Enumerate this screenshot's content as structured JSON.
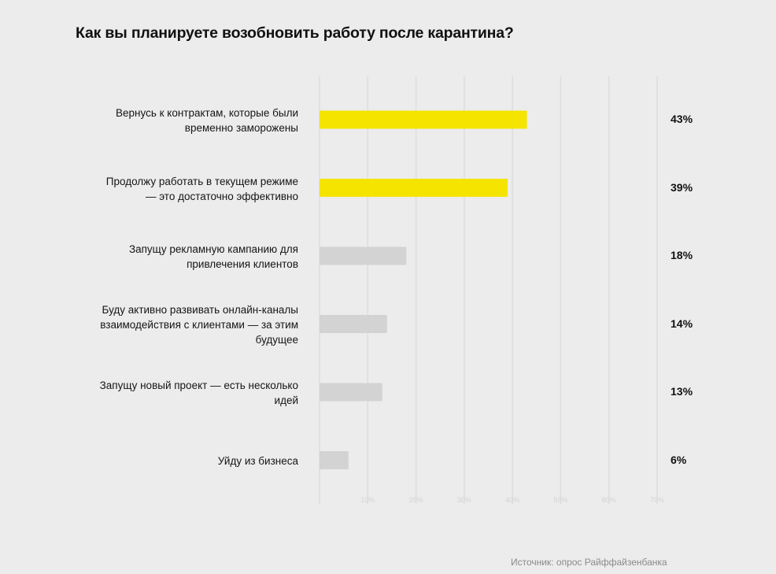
{
  "title": "Как вы планируете возобновить работу после карантина?",
  "source": "Источник: опрос Райффайзенбанка",
  "colors": {
    "highlight": "#f5e300",
    "normal": "#d3d3d3",
    "grid": "#dddddd"
  },
  "chart_data": {
    "type": "bar",
    "orientation": "horizontal",
    "title": "Как вы планируете возобновить работу после карантина?",
    "categories": [
      "Вернусь к контрактам, которые были\nвременно заморожены",
      "Продолжу работать в текущем режиме\n— это достаточно эффективно",
      "Запущу рекламную кампанию для\nпривлечения клиентов",
      "Буду активно развивать онлайн-каналы\nвзаимодействия с клиентами — за этим\nбудущее",
      "Запущу новый проект — есть несколько\nидей",
      "Уйду из бизнеса"
    ],
    "values": [
      43,
      39,
      18,
      14,
      13,
      6
    ],
    "value_labels": [
      "43%",
      "39%",
      "18%",
      "14%",
      "13%",
      "6%"
    ],
    "highlighted": [
      true,
      true,
      false,
      false,
      false,
      false
    ],
    "xlim": [
      0,
      70
    ],
    "xticks": [
      0,
      10,
      20,
      30,
      40,
      50,
      60,
      70
    ],
    "xtick_labels": [
      "",
      "10%",
      "20%",
      "30%",
      "40%",
      "50%",
      "60%",
      "70%"
    ],
    "grid": true,
    "xlabel": "",
    "ylabel": ""
  }
}
